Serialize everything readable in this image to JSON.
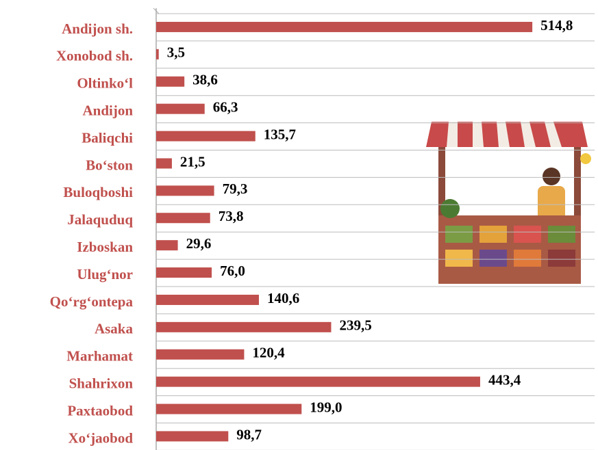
{
  "chart_data": {
    "type": "bar",
    "orientation": "horizontal",
    "categories": [
      "Andijon sh.",
      "Xonobod sh.",
      "Oltinko‘l",
      "Andijon",
      "Baliqchi",
      "Bo‘ston",
      "Buloqboshi",
      "Jalaquduq",
      "Izboskan",
      "Ulug‘nor",
      "Qo‘rg‘ontepa",
      "Asaka",
      "Marhamat",
      "Shahrixon",
      "Paxtaobod",
      "Xo‘jaobod"
    ],
    "values": [
      514.8,
      3.5,
      38.6,
      66.3,
      135.7,
      21.5,
      79.3,
      73.8,
      29.6,
      76.0,
      140.6,
      239.5,
      120.4,
      443.4,
      199.0,
      98.7
    ],
    "value_labels": [
      "514,8",
      "3,5",
      "38,6",
      "66,3",
      "135,7",
      "21,5",
      "79,3",
      "73,8",
      "29,6",
      "76,0",
      "140,6",
      "239,5",
      "120,4",
      "443,4",
      "199,0",
      "98,7"
    ],
    "color": "#c0504d",
    "xlim": [
      0,
      600
    ]
  }
}
